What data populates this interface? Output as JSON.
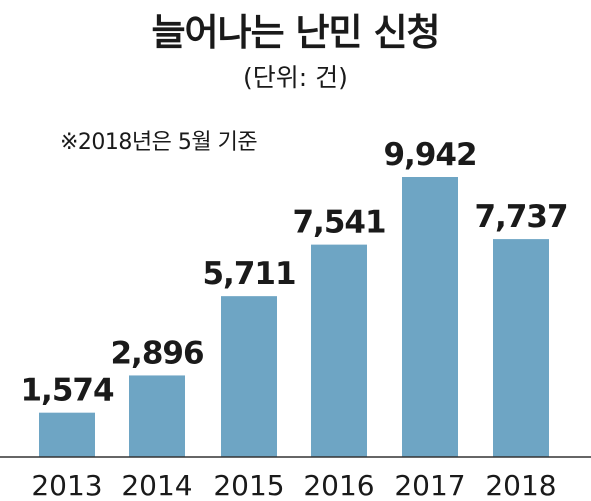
{
  "chart_data": {
    "type": "bar",
    "title": "늘어나는 난민 신청",
    "subtitle": "(단위: 건)",
    "note": "※2018년은 5월 기준",
    "categories": [
      "2013",
      "2014",
      "2015",
      "2016",
      "2017",
      "2018"
    ],
    "values": [
      1574,
      2896,
      5711,
      7541,
      9942,
      7737
    ],
    "value_labels": [
      "1,574",
      "2,896",
      "5,711",
      "7,541",
      "9,942",
      "7,737"
    ],
    "ylim": [
      0,
      10500
    ],
    "bar_color": "#6ea5c4",
    "grid": false,
    "legend": "none"
  }
}
